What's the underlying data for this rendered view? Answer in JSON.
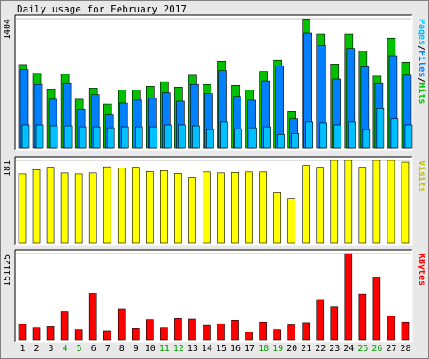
{
  "title": "Daily usage for February 2017",
  "colors": {
    "hits": "#00c000",
    "files": "#0080ff",
    "pages": "#00c0ff",
    "visits": "#ffff00",
    "kbytes": "#ff0000",
    "weekday_label": "#000000",
    "weekend_label": "#00a000",
    "background": "#e8e8e8",
    "plot_bg": "#ffffff"
  },
  "chart_data": [
    {
      "type": "bar",
      "name": "hits-files-pages",
      "categories": [
        "1",
        "2",
        "3",
        "4",
        "5",
        "6",
        "7",
        "8",
        "9",
        "10",
        "11",
        "12",
        "13",
        "14",
        "15",
        "16",
        "17",
        "18",
        "19",
        "20",
        "21",
        "22",
        "23",
        "24",
        "25",
        "26",
        "27",
        "28"
      ],
      "weekend_days": [
        "4",
        "5",
        "11",
        "12",
        "18",
        "19",
        "25",
        "26"
      ],
      "y_max_label": "1404",
      "ylim": [
        0,
        1404
      ],
      "side_label": [
        "Pages",
        "/",
        "Files",
        "/",
        "Hits"
      ],
      "series": [
        {
          "name": "Hits",
          "values": [
            905,
            810,
            640,
            800,
            530,
            650,
            480,
            630,
            630,
            670,
            720,
            660,
            790,
            690,
            940,
            680,
            630,
            830,
            950,
            400,
            1400,
            1240,
            910,
            1240,
            1050,
            780,
            1190,
            930
          ]
        },
        {
          "name": "Files",
          "values": [
            850,
            690,
            530,
            700,
            420,
            580,
            360,
            490,
            520,
            540,
            600,
            510,
            690,
            590,
            840,
            560,
            520,
            730,
            890,
            320,
            1250,
            1110,
            750,
            1080,
            880,
            700,
            1000,
            790
          ]
        },
        {
          "name": "Pages",
          "values": [
            250,
            250,
            240,
            240,
            230,
            230,
            220,
            230,
            230,
            230,
            250,
            250,
            240,
            200,
            280,
            210,
            220,
            230,
            150,
            160,
            280,
            270,
            250,
            280,
            200,
            430,
            320,
            250
          ]
        }
      ]
    },
    {
      "type": "bar",
      "name": "visits",
      "categories": [
        "1",
        "2",
        "3",
        "4",
        "5",
        "6",
        "7",
        "8",
        "9",
        "10",
        "11",
        "12",
        "13",
        "14",
        "15",
        "16",
        "17",
        "18",
        "19",
        "20",
        "21",
        "22",
        "23",
        "24",
        "25",
        "26",
        "27",
        "28"
      ],
      "y_max_label": "181",
      "ylim": [
        0,
        181
      ],
      "side_label": [
        "Visits"
      ],
      "series": [
        {
          "name": "Visits",
          "values": [
            152,
            161,
            166,
            154,
            152,
            154,
            167,
            164,
            166,
            157,
            159,
            153,
            143,
            156,
            154,
            155,
            156,
            156,
            110,
            98,
            170,
            166,
            181,
            181,
            166,
            181,
            181,
            177
          ]
        }
      ]
    },
    {
      "type": "bar",
      "name": "kbytes",
      "categories": [
        "1",
        "2",
        "3",
        "4",
        "5",
        "6",
        "7",
        "8",
        "9",
        "10",
        "11",
        "12",
        "13",
        "14",
        "15",
        "16",
        "17",
        "18",
        "19",
        "20",
        "21",
        "22",
        "23",
        "24",
        "25",
        "26",
        "27",
        "28"
      ],
      "y_max_label": "151125",
      "ylim": [
        0,
        151125
      ],
      "side_label": [
        "KBytes"
      ],
      "series": [
        {
          "name": "KBytes",
          "values": [
            28000,
            22000,
            24000,
            50000,
            19000,
            82000,
            17000,
            54000,
            21000,
            36000,
            22000,
            38000,
            37000,
            26000,
            29000,
            35000,
            15000,
            32000,
            19000,
            27000,
            31000,
            71000,
            59000,
            151000,
            80000,
            110000,
            42000,
            32000
          ]
        }
      ]
    }
  ]
}
